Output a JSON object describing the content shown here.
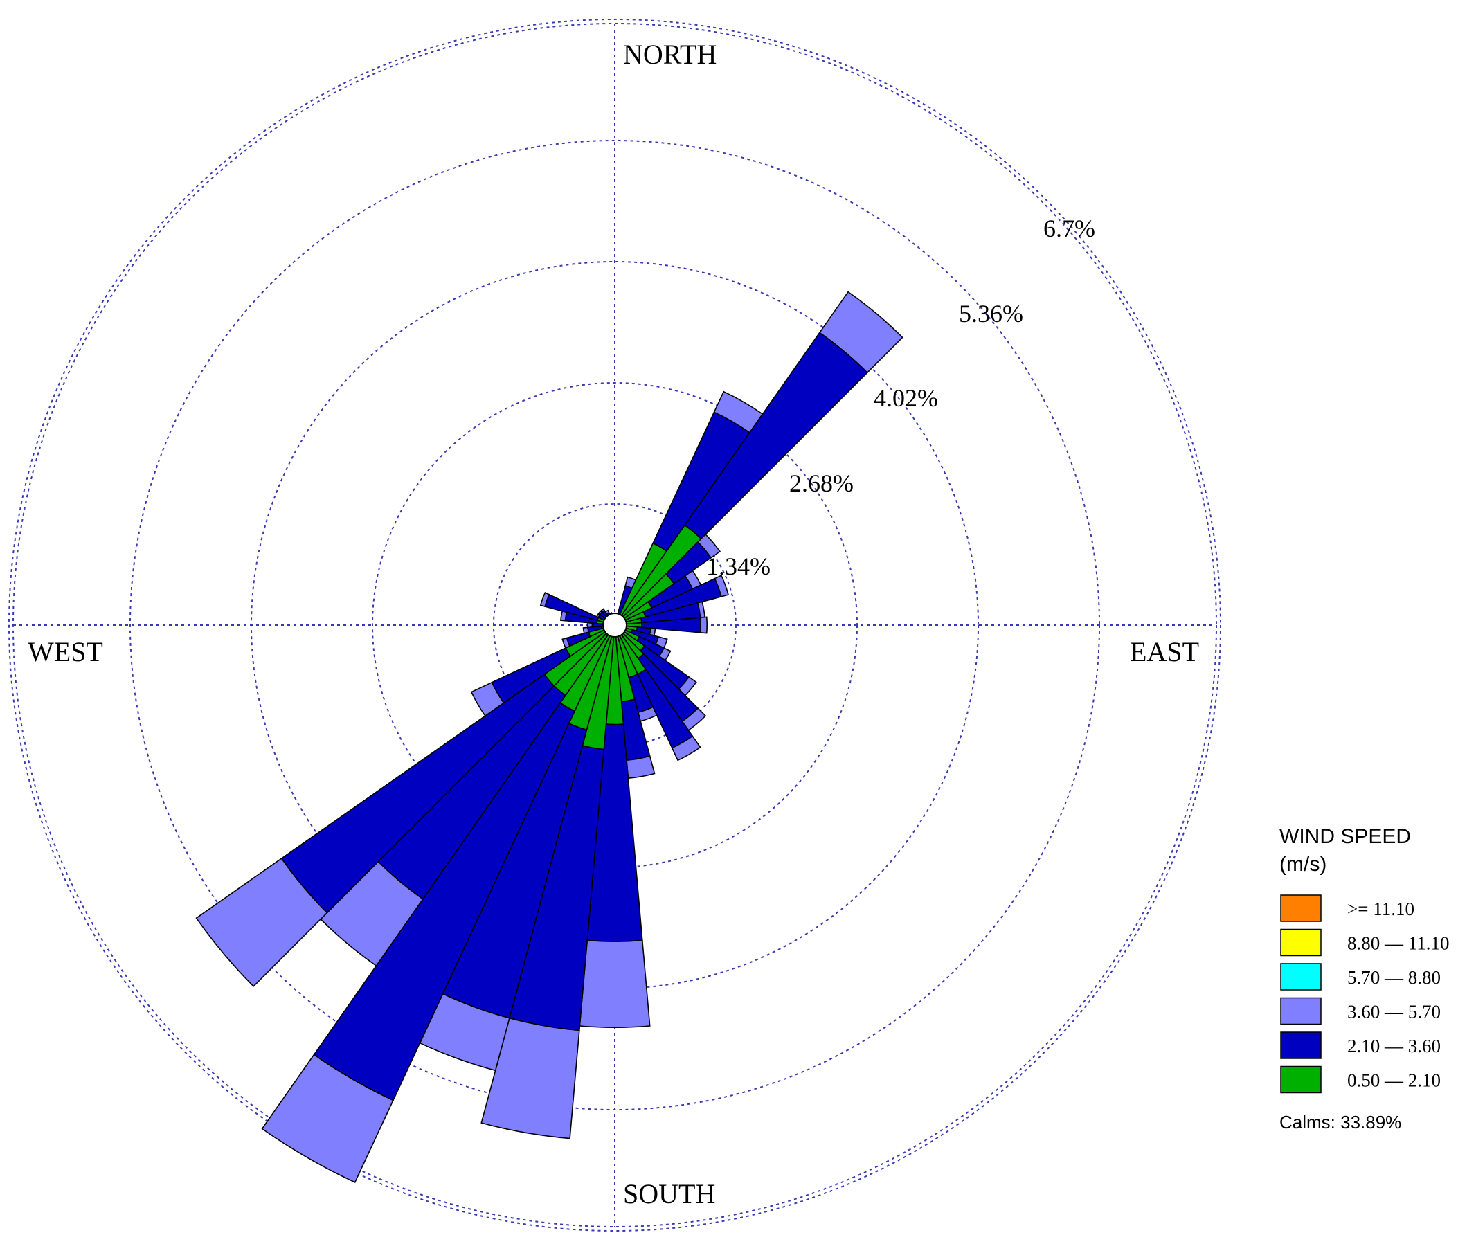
{
  "chart_data": {
    "type": "wind-rose",
    "directions": 36,
    "ring_labels": [
      "1.34%",
      "2.68%",
      "4.02%",
      "5.36%",
      "6.7%"
    ],
    "ring_values": [
      1.34,
      2.68,
      4.02,
      5.36,
      6.7
    ],
    "compass": {
      "north": "NORTH",
      "east": "EAST",
      "south": "SOUTH",
      "west": "WEST"
    },
    "legend": {
      "title_line1": "WIND SPEED",
      "title_line2": "(m/s)",
      "items": [
        {
          "label": ">= 11.10",
          "color": "#ff8000"
        },
        {
          "label": "8.80 — 11.10",
          "color": "#ffff00"
        },
        {
          "label": "5.70 — 8.80",
          "color": "#00ffff"
        },
        {
          "label": "3.60 — 5.70",
          "color": "#8080ff"
        },
        {
          "label": "2.10 — 3.60",
          "color": "#0000c0"
        },
        {
          "label": "0.50 — 2.10",
          "color": "#00b000"
        }
      ],
      "calms": "Calms: 33.89%"
    },
    "bin_colors": [
      "#00b000",
      "#0000c0",
      "#8080ff"
    ],
    "grid_color": "#3a3ab0",
    "grid": true,
    "legend_position": "bottom-right",
    "petals": [
      {
        "dir": 0,
        "cum": [
          0.02,
          0.06,
          0.07
        ]
      },
      {
        "dir": 10,
        "cum": [
          0.03,
          0.09,
          0.11
        ]
      },
      {
        "dir": 20,
        "cum": [
          0.05,
          0.45,
          0.55
        ]
      },
      {
        "dir": 30,
        "cum": [
          1.0,
          2.6,
          2.85
        ]
      },
      {
        "dir": 40,
        "cum": [
          1.35,
          3.95,
          4.5
        ]
      },
      {
        "dir": 50,
        "cum": [
          0.8,
          1.3,
          1.42
        ]
      },
      {
        "dir": 60,
        "cum": [
          0.45,
          0.95,
          1.05
        ]
      },
      {
        "dir": 70,
        "cum": [
          0.35,
          1.22,
          1.3
        ]
      },
      {
        "dir": 80,
        "cum": [
          0.3,
          0.95,
          1.0
        ]
      },
      {
        "dir": 90,
        "cum": [
          0.3,
          0.95,
          1.02
        ]
      },
      {
        "dir": 100,
        "cum": [
          0.25,
          0.4,
          0.45
        ]
      },
      {
        "dir": 110,
        "cum": [
          0.2,
          0.5,
          0.6
        ]
      },
      {
        "dir": 120,
        "cum": [
          0.3,
          0.6,
          0.68
        ]
      },
      {
        "dir": 130,
        "cum": [
          0.4,
          1.0,
          1.1
        ]
      },
      {
        "dir": 140,
        "cum": [
          0.45,
          1.3,
          1.42
        ]
      },
      {
        "dir": 150,
        "cum": [
          0.6,
          1.5,
          1.65
        ]
      },
      {
        "dir": 160,
        "cum": [
          0.6,
          1.0,
          1.1
        ]
      },
      {
        "dir": 170,
        "cum": [
          0.85,
          1.5,
          1.7
        ]
      },
      {
        "dir": 180,
        "cum": [
          1.1,
          3.5,
          4.45
        ]
      },
      {
        "dir": 190,
        "cum": [
          1.38,
          4.5,
          5.7
        ]
      },
      {
        "dir": 200,
        "cum": [
          1.2,
          4.5,
          5.1
        ]
      },
      {
        "dir": 210,
        "cum": [
          1.05,
          5.8,
          6.8
        ]
      },
      {
        "dir": 220,
        "cum": [
          0.95,
          3.7,
          4.6
        ]
      },
      {
        "dir": 230,
        "cum": [
          0.95,
          4.5,
          5.65
        ]
      },
      {
        "dir": 240,
        "cum": [
          0.6,
          1.5,
          1.75
        ]
      },
      {
        "dir": 250,
        "cum": [
          0.3,
          0.55,
          0.6
        ]
      },
      {
        "dir": 260,
        "cum": [
          0.15,
          0.3,
          0.35
        ]
      },
      {
        "dir": 270,
        "cum": [
          0.1,
          0.25,
          0.3
        ]
      },
      {
        "dir": 280,
        "cum": [
          0.2,
          0.55,
          0.6
        ]
      },
      {
        "dir": 290,
        "cum": [
          0.2,
          0.8,
          0.85
        ]
      },
      {
        "dir": 300,
        "cum": [
          0.1,
          0.2,
          0.22
        ]
      },
      {
        "dir": 310,
        "cum": [
          0.08,
          0.2,
          0.22
        ]
      },
      {
        "dir": 320,
        "cum": [
          0.08,
          0.2,
          0.22
        ]
      },
      {
        "dir": 330,
        "cum": [
          0.05,
          0.15,
          0.18
        ]
      },
      {
        "dir": 340,
        "cum": [
          0.04,
          0.12,
          0.14
        ]
      },
      {
        "dir": 350,
        "cum": [
          0.03,
          0.08,
          0.1
        ]
      }
    ]
  }
}
